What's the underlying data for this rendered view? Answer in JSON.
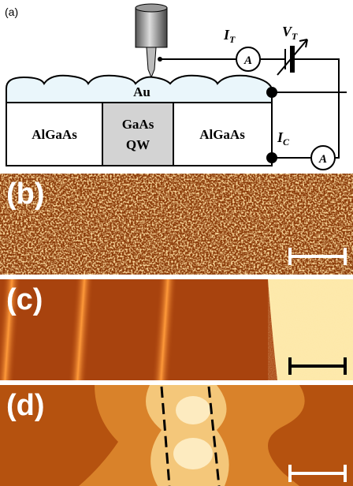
{
  "panel_a": {
    "label": "(a)",
    "tunnel_current": {
      "symbol": "I",
      "subscript": "T"
    },
    "tunnel_meter": "A",
    "bias_voltage": {
      "symbol": "V",
      "subscript": "T"
    },
    "gold_layer": "Au",
    "left_barrier": "AlGaAs",
    "well": [
      "GaAs",
      "QW"
    ],
    "right_barrier": "AlGaAs",
    "collector_current": {
      "symbol": "I",
      "subscript": "C"
    },
    "collector_meter": "A"
  },
  "panel_b": {
    "label": "(b)"
  },
  "panel_c": {
    "label": "(c)"
  },
  "panel_d": {
    "label": "(d)"
  }
}
